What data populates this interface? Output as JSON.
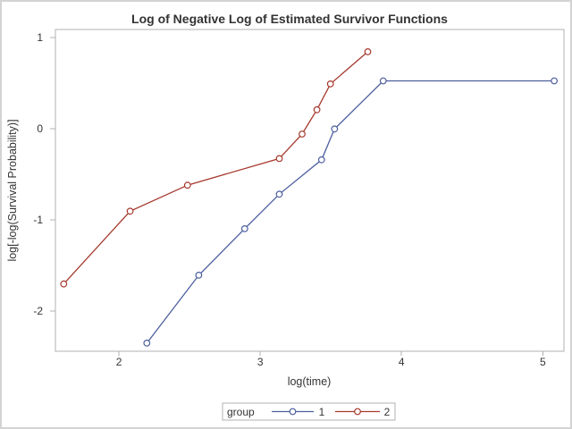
{
  "chart_data": {
    "type": "line",
    "title": "Log of Negative Log of Estimated Survivor Functions",
    "xlabel": "log(time)",
    "ylabel": "log[-log(Survival Probability)]",
    "xlim": [
      1.55,
      5.15
    ],
    "ylim": [
      -2.44,
      1.09
    ],
    "x_ticks": [
      2,
      3,
      4,
      5
    ],
    "y_ticks": [
      1,
      0,
      -1,
      -2
    ],
    "grid": false,
    "legend_title": "group",
    "legend_position": "bottom-center",
    "series": [
      {
        "name": "1",
        "color": "#4D5F9E",
        "marker": "open-circle",
        "points": [
          [
            2.197,
            -2.351
          ],
          [
            2.565,
            -1.606
          ],
          [
            2.89,
            -1.096
          ],
          [
            3.135,
            -0.717
          ],
          [
            3.434,
            -0.34
          ],
          [
            3.526,
            -0.001
          ],
          [
            3.871,
            0.526
          ],
          [
            5.081,
            0.526
          ]
        ]
      },
      {
        "name": "2",
        "color": "#A5392D",
        "marker": "open-circle",
        "points": [
          [
            1.609,
            -1.702
          ],
          [
            2.079,
            -0.903
          ],
          [
            2.485,
            -0.618
          ],
          [
            3.135,
            -0.326
          ],
          [
            3.296,
            -0.057
          ],
          [
            3.401,
            0.209
          ],
          [
            3.497,
            0.493
          ],
          [
            3.761,
            0.846
          ]
        ]
      }
    ]
  },
  "colors": {
    "background": "#FFFFFF",
    "text": "#333333",
    "axis_line": "#B0B0B0",
    "figure_border": "#D3D3D3",
    "group1": "#4D5F9E",
    "group2": "#A5392D"
  }
}
